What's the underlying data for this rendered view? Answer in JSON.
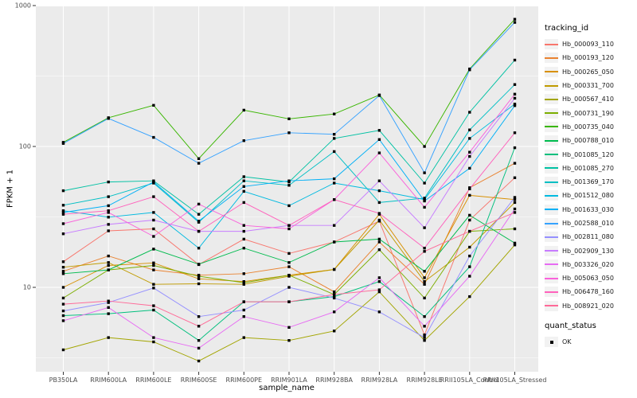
{
  "figure": {
    "y_axis_title": "FPKM + 1",
    "x_axis_title": "sample_name",
    "panel_bg": "#EBEBEB",
    "grid_color": "#FFFFFF",
    "tick_color": "#333333",
    "tick_text_color": "#4d4d4d",
    "point_color": "#000000"
  },
  "legend": {
    "tracking_title": "tracking_id",
    "quant_title": "quant_status",
    "quant_items": [
      {
        "label": "OK",
        "marker": "black-square"
      }
    ]
  },
  "chart_data": {
    "type": "line",
    "title": "",
    "xlabel": "sample_name",
    "ylabel": "FPKM + 1",
    "y_scale": "log10",
    "ylim": [
      2.4,
      1000
    ],
    "y_major_ticks": [
      10,
      100,
      1000
    ],
    "y_tick_labels": [
      "10",
      "100",
      "1000"
    ],
    "y_minor_gridlines": [
      3.162,
      31.62,
      316.2
    ],
    "grid": true,
    "legend_position": "right",
    "marker": "small black square (quant_status = OK)",
    "categories": [
      "PB350LA",
      "RRIM600LA",
      "RRIM600LE",
      "RRIM600SE",
      "RRIM600PE",
      "RRIM901LA",
      "RRIM928BA",
      "RRIM928LA",
      "RRIM928LE",
      "RRII105LA_Control",
      "RRII105LA_Stressed"
    ],
    "series": [
      {
        "name": "Hb_000093_110",
        "color": "#F8766D",
        "values": [
          15.2,
          25.2,
          26,
          14.5,
          22,
          17.4,
          21,
          29.5,
          4.6,
          30,
          60
        ]
      },
      {
        "name": "Hb_000193_120",
        "color": "#EA8331",
        "values": [
          13,
          16.7,
          13.3,
          12.2,
          12.5,
          14,
          9.3,
          21,
          10.5,
          51,
          76
        ]
      },
      {
        "name": "Hb_000265_050",
        "color": "#D89000",
        "values": [
          10,
          14.3,
          14.9,
          11.5,
          11,
          12.2,
          13.4,
          33,
          11.7,
          45,
          42
        ]
      },
      {
        "name": "Hb_000331_700",
        "color": "#C09B00",
        "values": [
          13.9,
          15,
          10.5,
          10.6,
          10.5,
          12,
          13.4,
          30,
          11,
          19.3,
          40
        ]
      },
      {
        "name": "Hb_000567_410",
        "color": "#A3A500",
        "values": [
          3.6,
          4.4,
          4.1,
          3.0,
          4.4,
          4.2,
          4.9,
          9.3,
          4.2,
          8.6,
          20
        ]
      },
      {
        "name": "Hb_000731_190",
        "color": "#7CAE00",
        "values": [
          8.4,
          13.3,
          14.3,
          12,
          10.8,
          12.2,
          8.9,
          18.5,
          8.4,
          25,
          26
        ]
      },
      {
        "name": "Hb_000735_040",
        "color": "#39B600",
        "values": [
          107,
          160,
          196,
          82,
          181,
          157,
          170,
          232,
          100,
          355,
          800
        ]
      },
      {
        "name": "Hb_000788_010",
        "color": "#00BB4E",
        "values": [
          12.5,
          13.3,
          18.7,
          14.6,
          19,
          15,
          21,
          22,
          13,
          32.5,
          20.6
        ]
      },
      {
        "name": "Hb_001085_120",
        "color": "#00BF7D",
        "values": [
          6.3,
          6.5,
          6.9,
          4.2,
          7.9,
          7.9,
          8.6,
          11,
          6.2,
          14,
          98
        ]
      },
      {
        "name": "Hb_001085_270",
        "color": "#00C1A3",
        "values": [
          48.5,
          56,
          57,
          33,
          61,
          56,
          114,
          130,
          55,
          175,
          410
        ]
      },
      {
        "name": "Hb_001369_170",
        "color": "#00BFC4",
        "values": [
          38.3,
          44,
          55,
          29,
          57,
          53,
          92,
          40,
          43,
          131,
          275
        ]
      },
      {
        "name": "Hb_001512_080",
        "color": "#00BAE0",
        "values": [
          35,
          31.5,
          34,
          19,
          48,
          38,
          55,
          48.5,
          42,
          114,
          200
        ]
      },
      {
        "name": "Hb_001633_030",
        "color": "#00B0F6",
        "values": [
          34,
          38,
          56,
          29.5,
          52,
          57,
          59,
          112,
          41,
          70,
          195
        ]
      },
      {
        "name": "Hb_002588_010",
        "color": "#35A2FF",
        "values": [
          105,
          158,
          116,
          76,
          110,
          125,
          122,
          230,
          65,
          350,
          760
        ]
      },
      {
        "name": "Hb_002811_080",
        "color": "#9590FF",
        "values": [
          6.8,
          7.8,
          9.9,
          6.2,
          6.9,
          10,
          8.4,
          6.7,
          4.4,
          16.7,
          43.5
        ]
      },
      {
        "name": "Hb_002909_130",
        "color": "#C77CFF",
        "values": [
          24,
          28,
          30,
          25,
          25,
          27.5,
          27.5,
          57,
          26.5,
          85,
          220
        ]
      },
      {
        "name": "Hb_003326_020",
        "color": "#E76BF3",
        "values": [
          5.8,
          7.2,
          4.4,
          3.7,
          6.2,
          5.2,
          6.7,
          11.7,
          5.3,
          12,
          36
        ]
      },
      {
        "name": "Hb_005063_050",
        "color": "#FA62DB",
        "values": [
          28.3,
          34,
          23,
          39,
          27.5,
          26,
          42,
          90,
          37,
          91,
          235
        ]
      },
      {
        "name": "Hb_006478_160",
        "color": "#FF62BC",
        "values": [
          33,
          35,
          44,
          25,
          40,
          27.5,
          42,
          33.5,
          19,
          50,
          125
        ]
      },
      {
        "name": "Hb_008921_020",
        "color": "#FF6A98",
        "values": [
          7.6,
          8,
          7.4,
          5.3,
          7.9,
          7.9,
          8.9,
          9.6,
          18,
          25,
          34
        ]
      }
    ]
  }
}
